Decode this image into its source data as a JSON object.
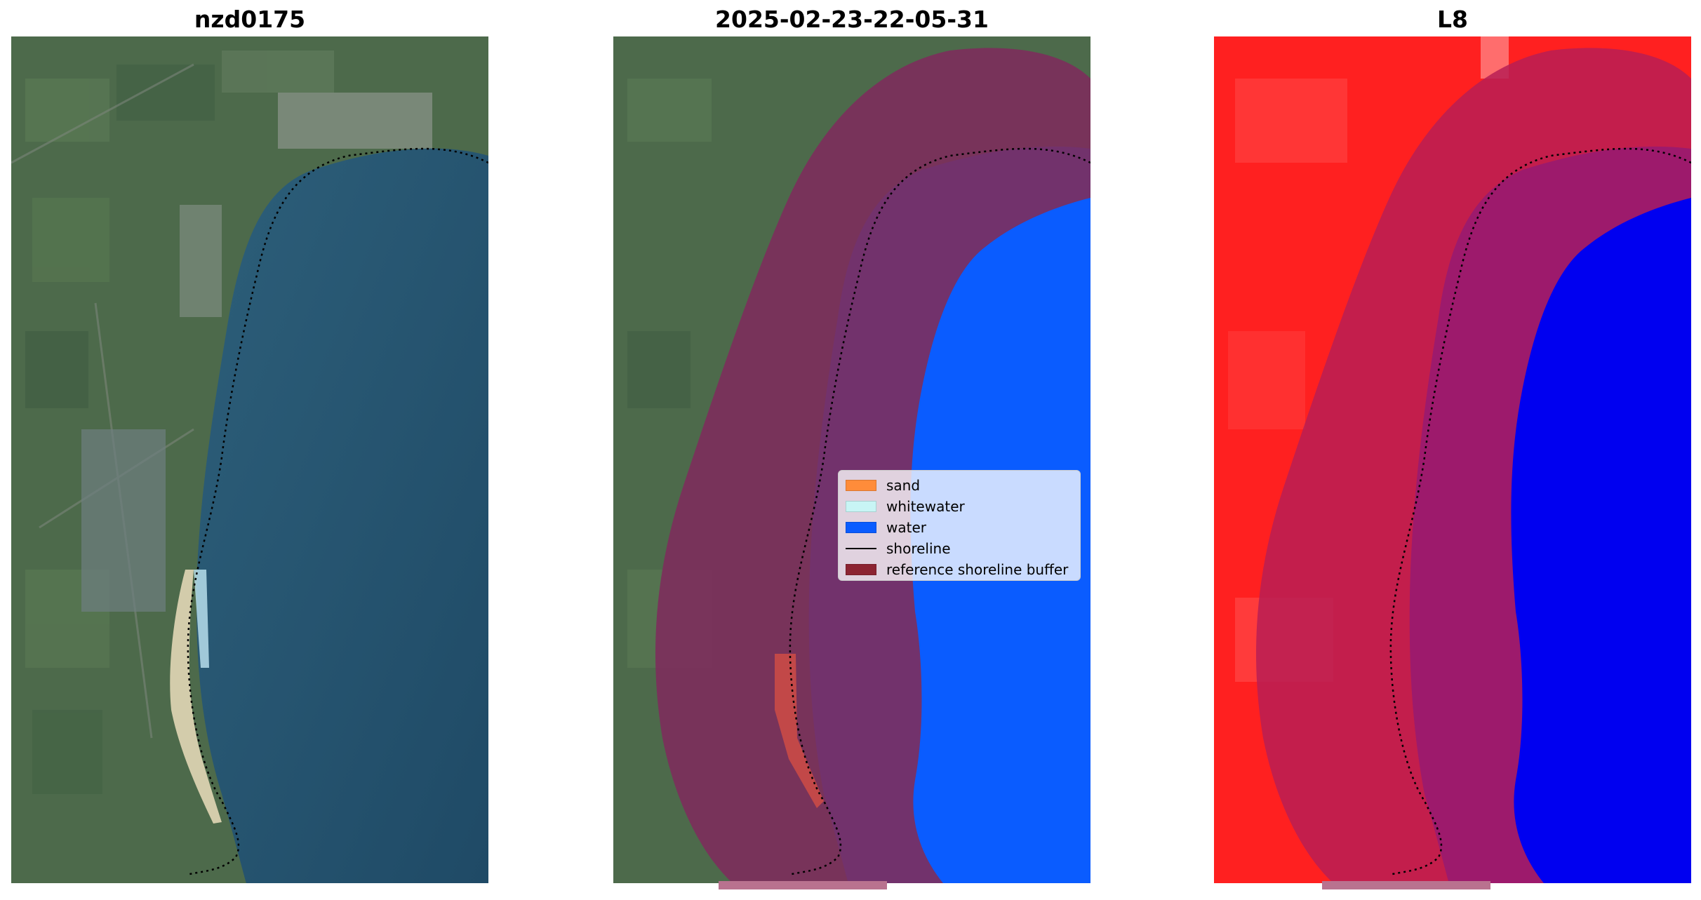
{
  "panels": [
    {
      "title": "nzd0175"
    },
    {
      "title": "2025-02-23-22-05-31"
    },
    {
      "title": "L8"
    }
  ],
  "legend": {
    "items": [
      {
        "label": "sand",
        "color": "#ff8c3a",
        "kind": "patch"
      },
      {
        "label": "whitewater",
        "color": "#c8f5f5",
        "kind": "patch"
      },
      {
        "label": "water",
        "color": "#0a5cff",
        "kind": "patch"
      },
      {
        "label": "shoreline",
        "color": "#000000",
        "kind": "line"
      },
      {
        "label": "reference shoreline buffer",
        "color": "#8c2432",
        "kind": "patch"
      }
    ]
  },
  "colors": {
    "land_green": "#4f6e4e",
    "sea_blue": "#22506c",
    "sand": "#e4d8b8",
    "buffer": "#7d2d5c",
    "water_class": "#0a5cff",
    "ndwi_red": "#ff1a1a",
    "ndwi_blue": "#0000f0",
    "buffer_overlay_l8": "#b81f55"
  }
}
